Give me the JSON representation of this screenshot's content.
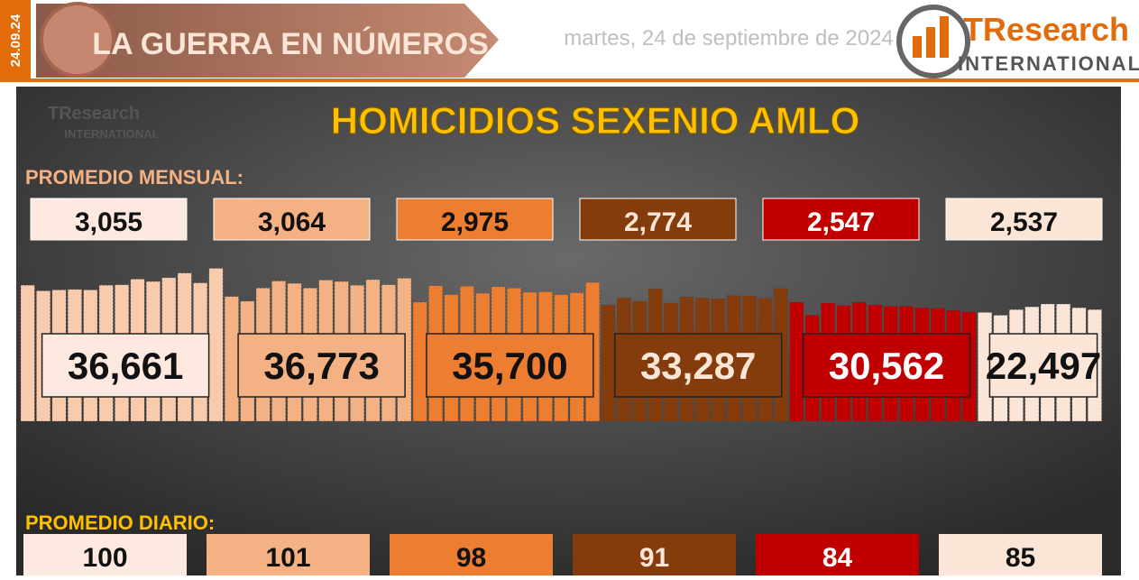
{
  "header": {
    "date_tag": "24.09.24",
    "title": "LA GUERRA EN NÚMEROS",
    "date": "martes, 24 de septiembre de 2024",
    "logo_main": "TResearch",
    "logo_sub": "INTERNATIONAL"
  },
  "chart_data": {
    "type": "bar",
    "title": "HOMICIDIOS SEXENIO AMLO",
    "monthly_caption": "PROMEDIO MENSUAL:",
    "daily_caption": "PROMEDIO DIARIO:",
    "groups": [
      {
        "color": "#f8cbad",
        "box_color": "#fde9df",
        "text_color": "#111",
        "monthly": 3055,
        "monthly_label": "3,055",
        "total": 36661,
        "total_label": "36,661",
        "daily": 100,
        "values": [
          2900,
          2780,
          2800,
          2810,
          2800,
          2900,
          2910,
          3030,
          2980,
          3060,
          3160,
          2950,
          3260
        ]
      },
      {
        "color": "#f4b183",
        "box_color": "#f4b183",
        "text_color": "#111",
        "monthly": 3064,
        "monthly_label": "3,064",
        "total": 36773,
        "total_label": "36,773",
        "daily": 101,
        "values": [
          2660,
          2560,
          2840,
          2990,
          2940,
          2840,
          3010,
          2980,
          2900,
          3020,
          2910,
          3050
        ]
      },
      {
        "color": "#ed7d31",
        "box_color": "#ed7d31",
        "text_color": "#111",
        "monthly": 2975,
        "monthly_label": "2,975",
        "total": 35700,
        "total_label": "35,700",
        "daily": 98,
        "values": [
          2540,
          2890,
          2700,
          2880,
          2730,
          2870,
          2840,
          2750,
          2760,
          2700,
          2740,
          2960
        ]
      },
      {
        "color": "#843c0c",
        "box_color": "#843c0c",
        "text_color": "#fbe5d6",
        "monthly": 2774,
        "monthly_label": "2,774",
        "total": 33287,
        "total_label": "33,287",
        "daily": 91,
        "values": [
          2480,
          2630,
          2560,
          2820,
          2520,
          2650,
          2630,
          2610,
          2680,
          2670,
          2620,
          2830
        ]
      },
      {
        "color": "#c00000",
        "box_color": "#c00000",
        "text_color": "#fff",
        "monthly": 2547,
        "monthly_label": "2,547",
        "total": 30562,
        "total_label": "30,562",
        "daily": 84,
        "values": [
          2540,
          2260,
          2520,
          2470,
          2540,
          2480,
          2450,
          2450,
          2420,
          2410,
          2360,
          2330
        ]
      },
      {
        "color": "#fbe5d6",
        "box_color": "#fbe5d6",
        "text_color": "#111",
        "monthly": 2537,
        "monthly_label": "2,537",
        "total": 22497,
        "total_label": "22,497",
        "daily": 85,
        "values": [
          2320,
          2260,
          2380,
          2440,
          2500,
          2500,
          2420,
          2380
        ]
      }
    ]
  }
}
